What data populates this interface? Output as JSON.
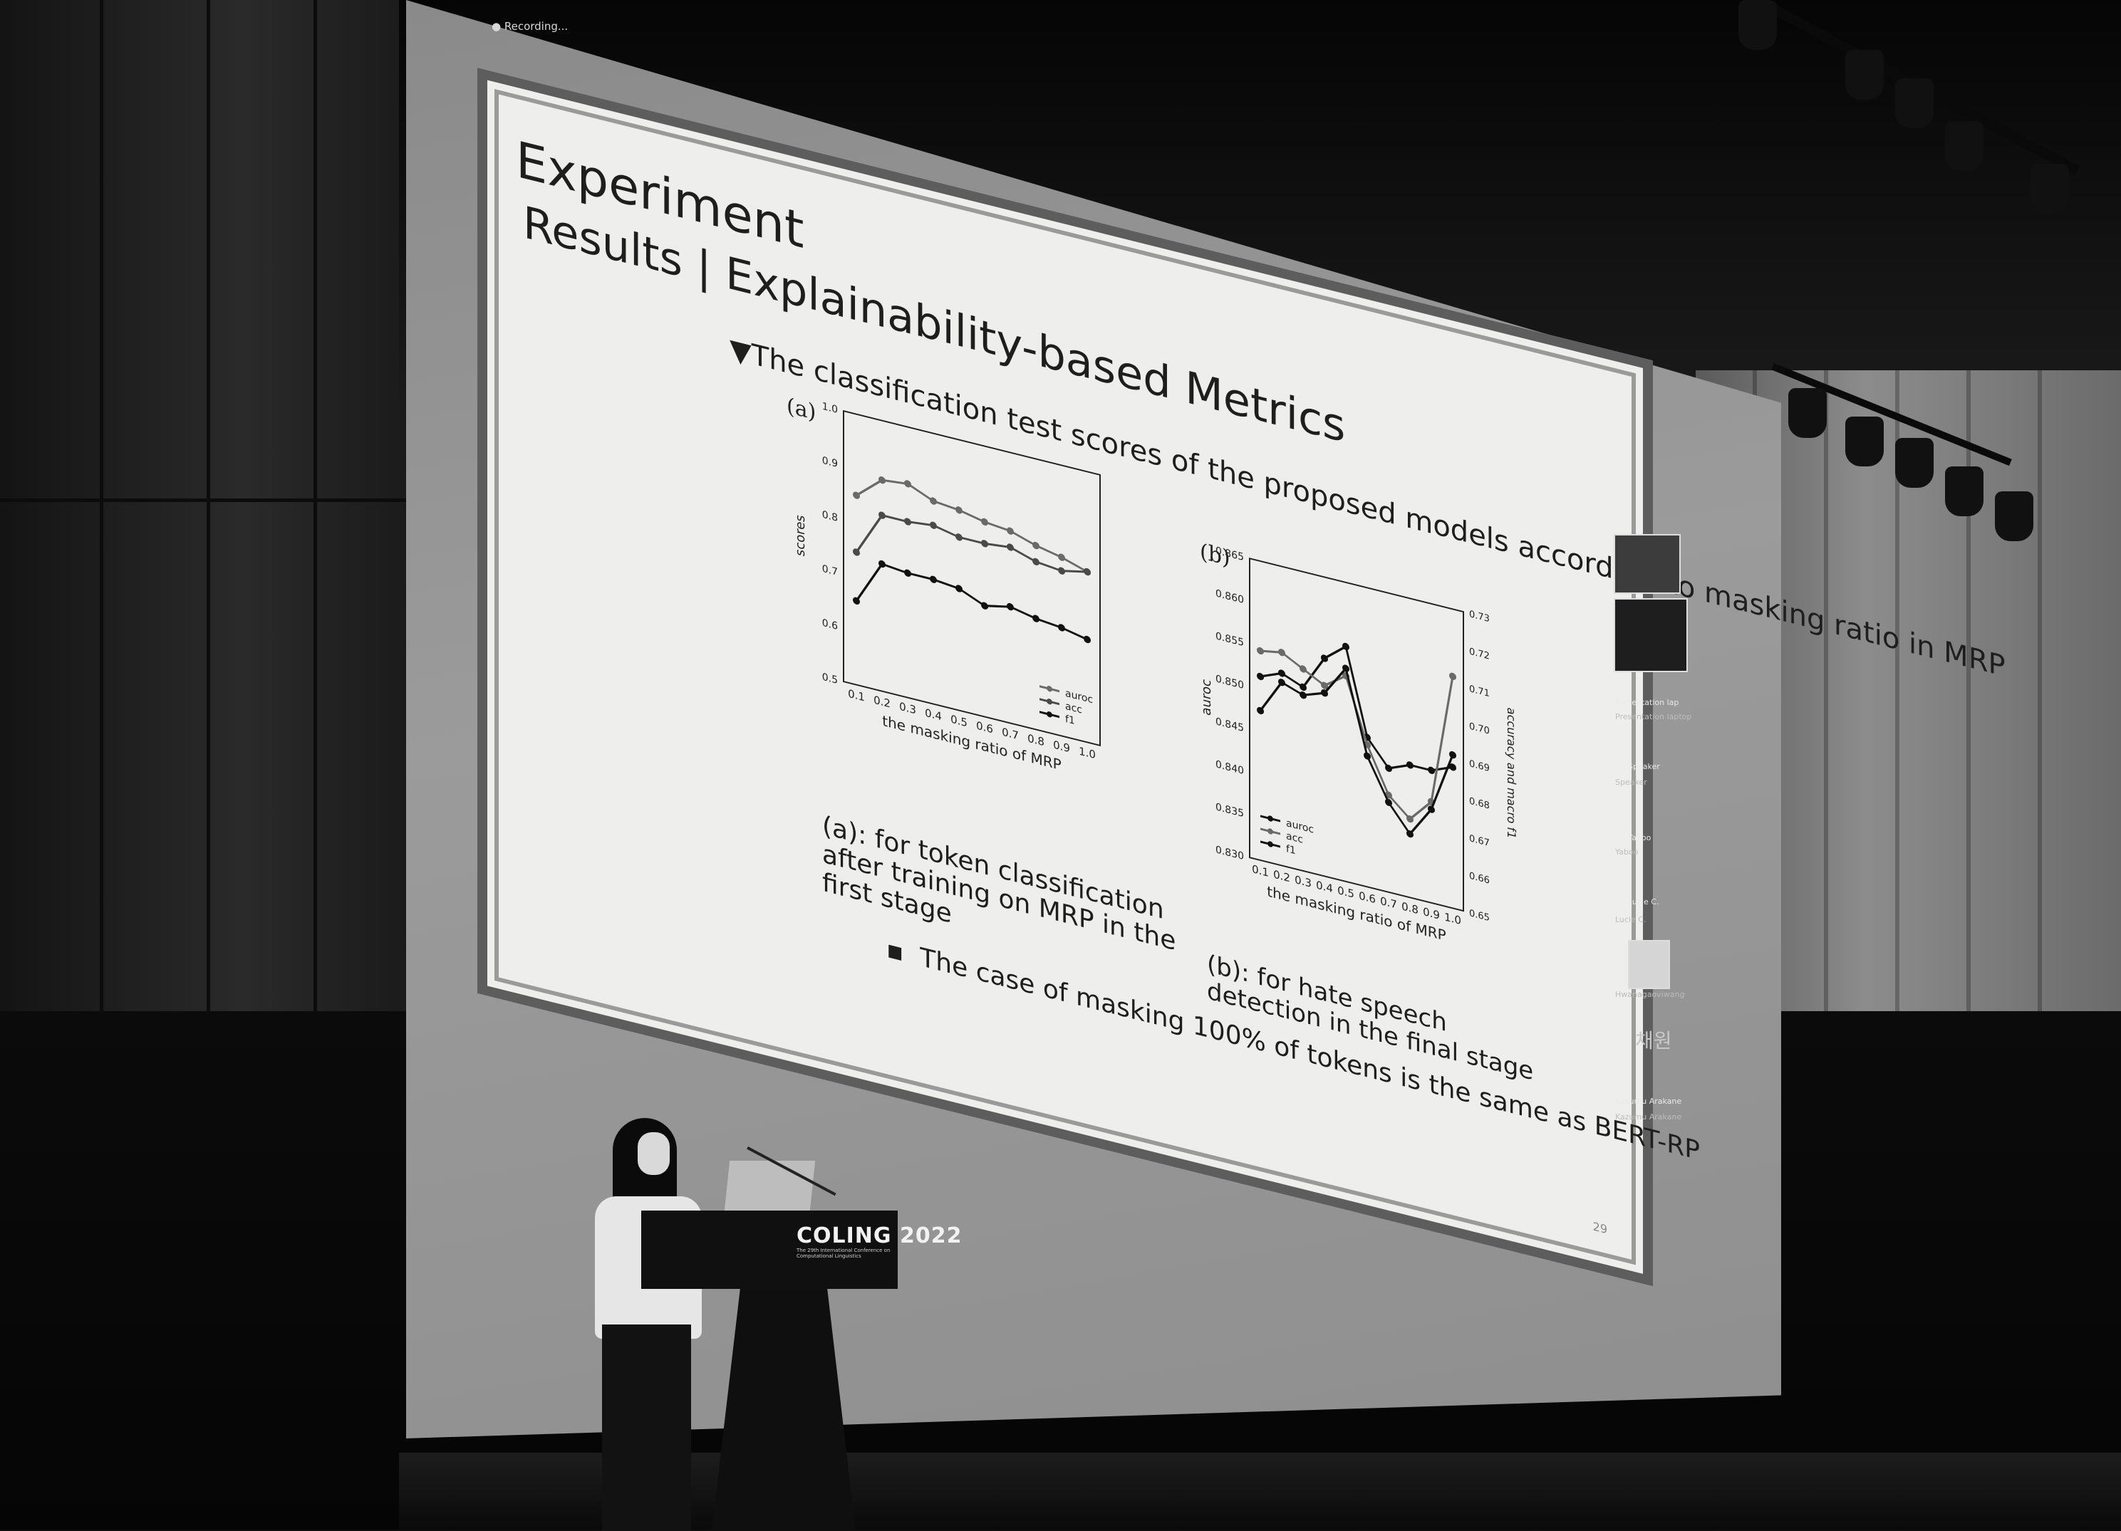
{
  "screen": {
    "recording_label": "Recording...",
    "slide": {
      "title": "Experiment",
      "subtitle": "Results | Explainability-based Metrics",
      "bullet_heading": "▼The classification test scores of the proposed models according to masking ratio in MRP",
      "panel_a_label": "(a)",
      "panel_b_label": "(b)",
      "caption_a": "(a): for token classification after training on MRP in the first stage",
      "caption_b": "(b): for hate speech detection in the final stage",
      "note": "The case of masking 100% of tokens is the same as BERT-RP",
      "page_number": "29"
    }
  },
  "side_panel": {
    "labels": [
      "Presentation lap",
      "Presentation laptop",
      "Speaker",
      "Speaker",
      "Yaboo",
      "Yaboo",
      "Lucie C.",
      "Lucie C.",
      "Hwanagaoviwang",
      "채원",
      "Kazumu Arakane",
      "Kazumu Arakane"
    ]
  },
  "podium": {
    "logo": "COLING 2022",
    "subtitle": "The 29th International Conference on Computational Linguistics"
  },
  "chart_data": [
    {
      "type": "line",
      "xlabel": "the masking ratio of MRP",
      "ylabel": "scores",
      "x": [
        0.1,
        0.2,
        0.3,
        0.4,
        0.5,
        0.6,
        0.7,
        0.8,
        0.9,
        1.0
      ],
      "ylim": [
        0.5,
        1.0
      ],
      "yticks": [
        0.5,
        0.6,
        0.7,
        0.8,
        0.9,
        1.0
      ],
      "legend_position": "bottom-right",
      "series": [
        {
          "name": "auroc",
          "values": [
            0.85,
            0.89,
            0.895,
            0.875,
            0.87,
            0.86,
            0.855,
            0.84,
            0.83,
            0.815
          ],
          "color": "#6a6a6a"
        },
        {
          "name": "acc",
          "values": [
            0.745,
            0.825,
            0.825,
            0.83,
            0.82,
            0.82,
            0.825,
            0.81,
            0.805,
            0.815
          ],
          "color": "#4a4a4a"
        },
        {
          "name": "f1",
          "values": [
            0.655,
            0.735,
            0.73,
            0.73,
            0.725,
            0.705,
            0.715,
            0.705,
            0.7,
            0.69
          ],
          "color": "#111111"
        }
      ]
    },
    {
      "type": "line",
      "xlabel": "the masking ratio of MRP",
      "ylabel": "auroc",
      "y2label": "accuracy and macro f1",
      "x": [
        0.1,
        0.2,
        0.3,
        0.4,
        0.5,
        0.6,
        0.7,
        0.8,
        0.9,
        1.0
      ],
      "ylim": [
        0.83,
        0.865
      ],
      "yticks": [
        0.83,
        0.835,
        0.84,
        0.845,
        0.85,
        0.855,
        0.86,
        0.865
      ],
      "y2lim": [
        0.65,
        0.73
      ],
      "y2ticks": [
        0.65,
        0.66,
        0.67,
        0.68,
        0.69,
        0.7,
        0.71,
        0.72,
        0.73
      ],
      "legend_position": "bottom-left",
      "series": [
        {
          "name": "auroc",
          "axis": "left",
          "values": [
            0.8515,
            0.8525,
            0.8515,
            0.8555,
            0.8575,
            0.8475,
            0.8445,
            0.8455,
            0.8455,
            0.8465
          ],
          "color": "#111111"
        },
        {
          "name": "acc",
          "axis": "right",
          "values": [
            0.706,
            0.707,
            0.704,
            0.701,
            0.705,
            0.688,
            0.676,
            0.671,
            0.677,
            0.712
          ],
          "color": "#6a6a6a"
        },
        {
          "name": "f1",
          "axis": "right",
          "values": [
            0.69,
            0.699,
            0.697,
            0.699,
            0.707,
            0.685,
            0.674,
            0.667,
            0.675,
            0.691
          ],
          "color": "#111111"
        }
      ]
    }
  ]
}
